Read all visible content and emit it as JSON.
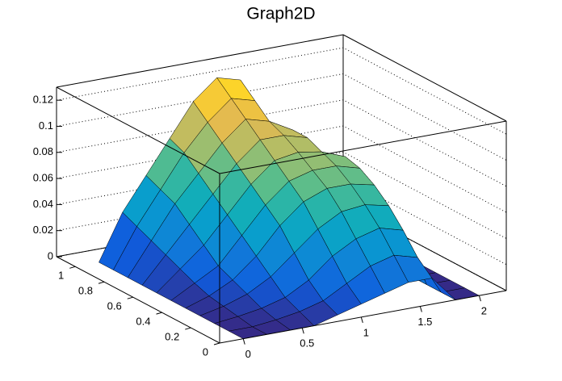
{
  "chart_data": {
    "type": "surface",
    "title": "Graph2D",
    "x": [
      0,
      0.2,
      0.4,
      0.6,
      0.8,
      1.0,
      1.2,
      1.4,
      1.6,
      1.8,
      2.0
    ],
    "y": [
      0,
      0.1,
      0.2,
      0.3,
      0.4,
      0.5,
      0.6,
      0.7,
      0.8,
      0.9,
      1.0
    ],
    "z": [
      [
        0,
        0,
        0,
        0,
        0.005,
        0.01,
        0.015,
        0.02,
        0.02,
        0,
        0
      ],
      [
        0,
        0,
        0.002,
        0.005,
        0.01,
        0.02,
        0.03,
        0.035,
        0.03,
        0,
        0
      ],
      [
        0,
        0.002,
        0.005,
        0.01,
        0.02,
        0.035,
        0.045,
        0.05,
        0.045,
        0,
        0
      ],
      [
        0,
        0.004,
        0.01,
        0.02,
        0.035,
        0.05,
        0.06,
        0.062,
        0.058,
        0,
        0
      ],
      [
        0,
        0.006,
        0.015,
        0.03,
        0.05,
        0.065,
        0.072,
        0.072,
        0.068,
        0,
        0
      ],
      [
        0,
        0.01,
        0.02,
        0.04,
        0.06,
        0.075,
        0.08,
        0.08,
        0.075,
        0,
        0
      ],
      [
        0,
        0.015,
        0.03,
        0.05,
        0.07,
        0.085,
        0.088,
        0.085,
        0.078,
        0,
        0
      ],
      [
        0,
        0.02,
        0.04,
        0.06,
        0.08,
        0.095,
        0.095,
        0.09,
        0,
        0,
        0
      ],
      [
        0,
        0.025,
        0.05,
        0.07,
        0.09,
        0.105,
        0.1,
        0.09,
        0,
        0,
        0
      ],
      [
        0,
        0.03,
        0.055,
        0.08,
        0.1,
        0.115,
        0.11,
        0,
        0,
        0,
        0
      ],
      [
        0,
        0.035,
        0.06,
        0.085,
        0.11,
        0.125,
        0.12,
        0,
        0,
        0,
        0
      ]
    ],
    "xlim": [
      -0.2,
      2.23
    ],
    "ylim": [
      0,
      1.13
    ],
    "zlim": [
      0,
      0.13
    ],
    "xticks": [
      0,
      0.5,
      1,
      1.5,
      2
    ],
    "yticks": [
      0,
      0.2,
      0.4,
      0.6,
      0.8,
      1
    ],
    "zticks": [
      0,
      0.02,
      0.04,
      0.06,
      0.08,
      0.1,
      0.12
    ],
    "grid": true
  }
}
